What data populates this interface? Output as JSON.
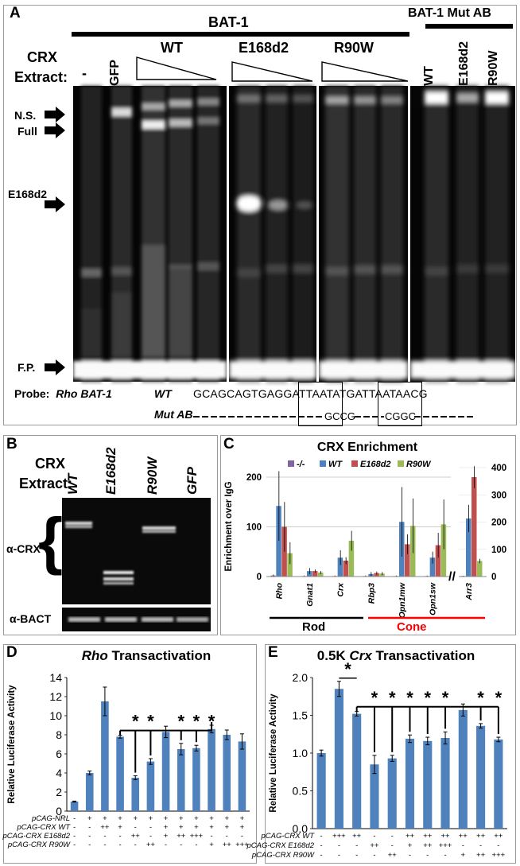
{
  "panelA": {
    "letter": "A",
    "probe_group_label": "BAT-1",
    "mut_group_label": "BAT-1 Mut AB",
    "crx_label": "CRX",
    "extract_label": "Extract:",
    "lanes": [
      "-",
      "GFP",
      "WT",
      "E168d2",
      "R90W"
    ],
    "mut_lanes": [
      "WT",
      "E168d2",
      "R90W"
    ],
    "band_labels": [
      "N.S.",
      "Full",
      "E168d2",
      "F.P."
    ],
    "probe_label": "Probe:",
    "probe_name": "Rho BAT-1",
    "wt_label": "WT",
    "wt_sequence": "GCAGCAGTGAGGATTAATATGATTAATAACG",
    "mut_label": "Mut AB",
    "mut_sub1": "GCCG",
    "mut_sub2": "CGGC"
  },
  "panelB": {
    "letter": "B",
    "crx_label": "CRX",
    "extract_label": "Extract:",
    "lanes": [
      "WT",
      "E168d2",
      "R90W",
      "GFP"
    ],
    "row1_label": "α-CRX",
    "row2_label": "α-BACT"
  },
  "panelC": {
    "letter": "C",
    "chart_data": {
      "type": "bar",
      "title": "CRX Enrichment",
      "ylabel": "Enrichment over IgG",
      "legend": [
        "-/-",
        "WT",
        "E168d2",
        "R90W"
      ],
      "colors": [
        "#8064a2",
        "#4f81bd",
        "#c0504d",
        "#9bbb59"
      ],
      "categories": [
        "Rho",
        "Gnat1",
        "Crx",
        "Rbp3",
        "Opn1mw",
        "Opn1sw"
      ],
      "ylim_left": [
        0,
        200
      ],
      "yticks_left": [
        "0",
        "100",
        "200"
      ],
      "series": [
        {
          "name": "-/-",
          "values": [
            2,
            1,
            1,
            1,
            1,
            1
          ]
        },
        {
          "name": "WT",
          "values": [
            142,
            11,
            38,
            5,
            110,
            38
          ]
        },
        {
          "name": "E168d2",
          "values": [
            100,
            11,
            32,
            7,
            65,
            63
          ]
        },
        {
          "name": "R90W",
          "values": [
            47,
            8,
            72,
            6,
            102,
            105
          ]
        }
      ],
      "errors": [
        [
          2,
          1,
          1,
          1,
          1,
          1
        ],
        [
          70,
          6,
          15,
          4,
          70,
          12
        ],
        [
          50,
          3,
          7,
          3,
          20,
          25
        ],
        [
          22,
          3,
          20,
          3,
          55,
          50
        ]
      ],
      "right_category": "Arr3",
      "ylim_right": [
        0,
        400
      ],
      "yticks_right": [
        "0",
        "100",
        "200",
        "300",
        "400"
      ],
      "right_values": [
        2,
        213,
        365,
        57
      ],
      "right_errors": [
        1,
        50,
        40,
        8
      ],
      "break_mark": "//",
      "rod_label": "Rod",
      "cone_label": "Cone"
    }
  },
  "panelD": {
    "letter": "D",
    "chart_data": {
      "type": "bar",
      "title_italic": "Rho",
      "title_rest": " Transactivation",
      "ylabel": "Relative Luciferase Activity",
      "ylim": [
        0,
        14
      ],
      "yticks": [
        "0",
        "2",
        "4",
        "6",
        "8",
        "10",
        "12",
        "14"
      ],
      "values": [
        1.0,
        4.0,
        11.5,
        7.8,
        3.5,
        5.2,
        8.3,
        6.5,
        6.6,
        8.6,
        8.0,
        7.3
      ],
      "errors": [
        0.05,
        0.2,
        1.5,
        0.15,
        0.2,
        0.3,
        0.6,
        0.6,
        0.3,
        0.4,
        0.5,
        0.8
      ],
      "color": "#4f81bd",
      "significance": "*",
      "star_cols": [
        4,
        5,
        7,
        8,
        9
      ],
      "rows": [
        {
          "label": "pCAG-NRL",
          "values": [
            "-",
            "+",
            "+",
            "+",
            "+",
            "+",
            "+",
            "+",
            "+",
            "+",
            "+",
            "+"
          ]
        },
        {
          "label": "pCAG-CRX WT",
          "values": [
            "-",
            "-",
            "++",
            "+",
            "-",
            "-",
            "+",
            "+",
            "+",
            "+",
            "+",
            "+"
          ]
        },
        {
          "label": "pCAG-CRX E168d2",
          "values": [
            "-",
            "-",
            "-",
            "-",
            "++",
            "-",
            "+",
            "++",
            "+++",
            "-",
            "-",
            "-"
          ]
        },
        {
          "label": "pCAG-CRX R90W",
          "values": [
            "-",
            "-",
            "-",
            "-",
            "-",
            "++",
            "-",
            "-",
            "-",
            "+",
            "++",
            "+++"
          ]
        }
      ]
    }
  },
  "panelE": {
    "letter": "E",
    "chart_data": {
      "type": "bar",
      "title_pre": "0.5K ",
      "title_italic": "Crx",
      "title_rest": " Transactivation",
      "ylabel": "Relative Luciferase Activity",
      "ylim": [
        0,
        2.0
      ],
      "yticks": [
        "0.0",
        "0.5",
        "1.0",
        "1.5",
        "2.0"
      ],
      "values": [
        1.0,
        1.85,
        1.52,
        0.85,
        0.93,
        1.19,
        1.16,
        1.2,
        1.57,
        1.36,
        1.18
      ],
      "errors": [
        0.04,
        0.1,
        0.03,
        0.12,
        0.04,
        0.05,
        0.05,
        0.08,
        0.08,
        0.03,
        0.03
      ],
      "color": "#4f81bd",
      "significance": "*",
      "star_cols": [
        3,
        4,
        5,
        6,
        7,
        9,
        10
      ],
      "rows": [
        {
          "label": "pCAG-CRX WT",
          "values": [
            "-",
            "+++",
            "++",
            "-",
            "-",
            "++",
            "++",
            "++",
            "++",
            "++",
            "++"
          ]
        },
        {
          "label": "pCAG-CRX E168d2",
          "values": [
            "-",
            "-",
            "-",
            "++",
            "-",
            "+",
            "++",
            "+++",
            "-",
            "-",
            "-"
          ]
        },
        {
          "label": "pCAG-CRX R90W",
          "values": [
            "-",
            "-",
            "-",
            "-",
            "++",
            "-",
            "-",
            "-",
            "+",
            "++",
            "+++"
          ]
        }
      ]
    }
  }
}
